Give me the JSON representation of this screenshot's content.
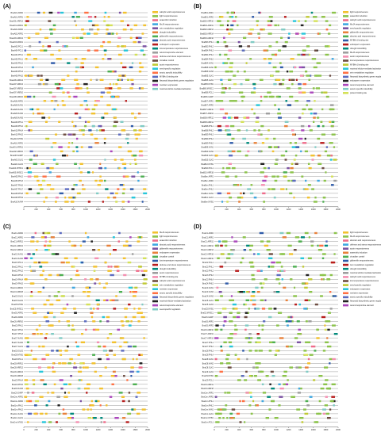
{
  "figure": {
    "panels": [
      {
        "letter": "(A)",
        "genes": [
          "BnaA01.ARR2",
          "BnaA01.ARR1",
          "BnaA01.ARR12",
          "BnaA01.ARR11",
          "BnaA02.ARR2",
          "BnaA02.ARR1",
          "BnaA03.ARR12",
          "BnaA03.ARR11",
          "BnaA03.PCL1",
          "BnaA04.PCL1",
          "BnaA04.PHL1",
          "BnaA05.PHL1",
          "BnaA05.PHL2",
          "BnaA05.PHL3",
          "BnaA06.PHL4",
          "BnaA06.PHL5",
          "BnaA06.ARR14",
          "BnaA07.ARR14",
          "BnaA07.ARR18",
          "BnaA07.ARR10",
          "BnaA08.ARR10",
          "BnaA08.ARR1",
          "BnaA08.KAN1",
          "BnaA09.KAN1",
          "BnaA09.KAN2",
          "BnaA09.KAN3",
          "BnaA09.PHL1",
          "BnaA09.PHL2",
          "BnaA10.PHL4",
          "BnaA10.PHL5",
          "BnaA10.MYB1",
          "BnaA10.ARR1",
          "BnaA01.ARR11",
          "BnaA02.ARR10",
          "BnaA03.GARP",
          "BnaA03.GLK1",
          "BnaA04.GLK2",
          "BnaA04.MYBC1",
          "BnaA05.MYBC1",
          "BnaA05.PHL2",
          "BnaA06.PHL3",
          "BnaA07.PHL6",
          "BnaA07.PHL7",
          "BnaA08.PHL8",
          "BnaA09.PHL9",
          "BnaA10.KAN4"
        ],
        "ticks": [
          "0",
          "200",
          "400",
          "600",
          "800",
          "1000",
          "1200",
          "1400",
          "1600",
          "1800",
          "2000"
        ],
        "legend": [
          "salicylic acid responsiveness",
          "light responsiveness",
          "anaerobic induction",
          "MeJA responsiveness",
          "zein metabolism regulation",
          "drought inducibility",
          "gibberellin responsiveness",
          "abscisic acid responsiveness",
          "endosperm expression",
          "low temperature responsiveness",
          "wound-responsive element",
          "defense and stress responsiveness",
          "circadian control",
          "auxin responsiveness",
          "seed-specific regulation",
          "anoxic specific inducibility",
          "MYBHv1 binding site",
          "flavonoid biosynthetic genes regulation",
          "meristem expression",
          "maximal elicitor-mediated activation"
        ]
      },
      {
        "letter": "(B)",
        "genes": [
          "BnaB01.ARR1",
          "BnaB01.ARR2",
          "BnaB02.ARR10",
          "BnaB02.ARR11",
          "BnaB02.ARR12",
          "BnaB03.ARR14",
          "BnaB03.ARR18",
          "BnaB03.PHL1",
          "BnaB03.PHL2",
          "BnaB04.PHL3",
          "BnaB04.PHL4",
          "BnaB04.PHL5",
          "BnaB04.KAN1",
          "BnaB05.KAN2",
          "BnaB05.KAN3",
          "BnaB05.GLK1",
          "BnaB05.GLK2",
          "BnaB05.MYB1",
          "BnaB06.MYBC1",
          "BnaB06.PCL1",
          "BnaB06.GARP",
          "BnaB07.ARR1",
          "BnaB07.ARR2",
          "BnaB07.ARR10",
          "BnaB07.ARR11",
          "BnaB08.ARR12",
          "BnaB08.ARR14",
          "BnaB08.PHL1",
          "BnaB08.PHL2",
          "BnaB09.PHL3",
          "BnaB09.PHL4",
          "BnaB09.PHL5",
          "BnaB09.KAN1",
          "BnaB10.KAN2",
          "BnaB10.GLK1",
          "BnaB10.GLK2",
          "BnaB10.MYB1",
          "BnaB10.PCL1",
          "BnaB10.ARR18",
          "BnaBnn.ARR1",
          "BnaBnn.ARR2",
          "BnaBnn.PHL1",
          "BnaBnn.PHL2",
          "BnaBnn.KAN1",
          "BnaBnn.GLK1",
          "BnaBnn.MYB1"
        ],
        "ticks": [
          "0",
          "200",
          "400",
          "600",
          "800",
          "1000",
          "1200",
          "1400",
          "1600",
          "1800",
          "2000"
        ],
        "legend": [
          "light responsiveness",
          "anaerobic induction",
          "salicylic acid responsiveness",
          "MeJA responsiveness",
          "seed-specific regulation",
          "gibberellin responsiveness",
          "abscisic acid responsiveness",
          "MYBHv1 binding site",
          "endosperm expression",
          "drought inducibility",
          "MeJA responsiveness",
          "auxin responsiveness",
          "low temperature responsiveness",
          "MYBHv1 binding site",
          "maximal elicitor-mediated activation",
          "zein metabolism regulation",
          "flavonoid biosynthetic genes regulation",
          "endosperm expression",
          "wound-responsive element",
          "anoxic specific inducibility",
          "protein binding site"
        ]
      },
      {
        "letter": "(C)",
        "genes": [
          "BnaC1.ARR2",
          "BnaC1.ARR1",
          "BnaC1.ARR11",
          "BnaC1.ARR12",
          "BnaC2.ARR14",
          "BnaC2.KAN1",
          "BnaC2.KAN2",
          "BnaC3.PCL1",
          "BnaC3.PHL1",
          "BnaC3.PHL2",
          "BnaC3.PHL3",
          "BnaC4.PHL4",
          "BnaC4.PHL5",
          "BnaC4.ARR10",
          "BnaC4.ARR18",
          "BnaC5.GLK1",
          "BnaC5.GLK2",
          "BnaC5.MYB1",
          "BnaC5.MYBC1",
          "BnaC6.ARR1",
          "BnaC6.ARR2",
          "BnaC6.ARR10",
          "BnaC6.PHL1",
          "BnaC7.PHL2",
          "BnaC7.PHL3",
          "BnaC7.KAN1",
          "BnaC7.KAN2",
          "BnaC7.GLK1",
          "BnaC8.GLK2",
          "BnaC8.MYB1",
          "BnaC8.PCL1",
          "BnaC8.ARR11",
          "BnaC8.ARR12",
          "BnaC9.ARR14",
          "BnaC9.ARR18",
          "BnaC9.PHL4",
          "BnaC9.PHL5",
          "BnaC9.KAN3",
          "BnaC9.GARP",
          "BnaCnn.ARR1",
          "BnaCnn.ARR2",
          "BnaCnn.PHL1",
          "BnaCnn.PHL2",
          "BnaCnn.KAN1",
          "BnaCnn.GLK1",
          "BnaCnn.MYB1"
        ],
        "ticks": [
          "0",
          "200",
          "400",
          "600",
          "800",
          "1000",
          "1200",
          "1400",
          "1600",
          "1800",
          "2000"
        ],
        "legend": [
          "MeJA responsiveness",
          "light responsiveness",
          "anaerobic induction",
          "abscisic acid responsiveness",
          "gibberellin responsiveness",
          "endosperm expression",
          "circadian control",
          "low temperature responsiveness",
          "defense and stress responsiveness",
          "drought inducibility",
          "auxin responsiveness",
          "MYBHv1 binding site",
          "salicylic acid responsiveness",
          "zein metabolism regulation",
          "meristem expression",
          "anoxic specific inducibility",
          "flavonoid biosynthetic genes regulation",
          "maximal elicitor-mediated activation",
          "wound-responsive element",
          "seed-specific regulation"
        ]
      },
      {
        "letter": "(D)",
        "genes": [
          "BnaC1.ARR2",
          "BnaC1.ARR1",
          "BnaC1.ARR11",
          "BnaC1.ARR12",
          "BnaC2.ARR14",
          "BnaC2.ARR18",
          "BnaC2.ARR10",
          "BnaC2.PCL1",
          "BnaC3.PHL1",
          "BnaC3.PHL2",
          "BnaC3.PHL3",
          "BnaC3.PHL4",
          "BnaC4.PHL5",
          "BnaC4.KAN1",
          "BnaC4.KAN2",
          "BnaC4.KAN3",
          "BnaC5.GLK1",
          "BnaC5.GLK2",
          "BnaC5.MYB1",
          "BnaC5.MYBC1",
          "BnaC6.GARP",
          "BnaC6.ARR1",
          "BnaC6.ARR2",
          "BnaC6.ARR10",
          "BnaC7.ARR11",
          "BnaC7.ARR12",
          "BnaC7.PHL1",
          "BnaC7.PHL2",
          "BnaC8.PHL3",
          "BnaC8.PHL4",
          "BnaC8.KAN1",
          "BnaC8.KAN2",
          "BnaC8.GLK1",
          "BnaC9.GLK2",
          "BnaC9.MYB1",
          "BnaC9.PCL1",
          "BnaC9.ARR14",
          "BnaC9.ARR18",
          "BnaCnn.ARR1",
          "BnaCnn.ARR2",
          "BnaCnn.PHL1",
          "BnaCnn.PHL2",
          "BnaCnn.KAN1",
          "BnaCnn.GLK1",
          "BnaCnn.MYB1",
          "BnaCnn.PCL1"
        ],
        "ticks": [
          "0",
          "200",
          "400",
          "600",
          "800",
          "1000",
          "1200",
          "1400",
          "1600",
          "1800",
          "2000"
        ],
        "legend": [
          "light responsiveness",
          "MeJA responsiveness",
          "abscisic acid responsiveness",
          "defense and stress responsiveness",
          "auxin responsiveness",
          "anaerobic induction",
          "circadian control",
          "gibberellin responsiveness",
          "zein metabolism regulation",
          "drought inducibility",
          "maximal elicitor-mediated activation",
          "salicylic acid responsiveness",
          "low temperature responsiveness",
          "seed-specific regulation",
          "endosperm expression",
          "meristem expression",
          "anoxic specific inducibility",
          "flavonoid biosynthetic genes regulation",
          "wound-responsive element"
        ]
      }
    ],
    "palette": [
      "#f2c12e",
      "#8bc34a",
      "#ef6c8a",
      "#3fa7e0",
      "#7b52a3",
      "#e8813a",
      "#4caf50",
      "#2e5aa8",
      "#b71c1c",
      "#00897b",
      "#9e9e9e",
      "#f48fb1",
      "#6d4c41",
      "#c0ca33",
      "#26c6da",
      "#ff7043",
      "#5c6bc0",
      "#212121",
      "#ab47bc",
      "#80cbc4",
      "#d4e157"
    ]
  }
}
